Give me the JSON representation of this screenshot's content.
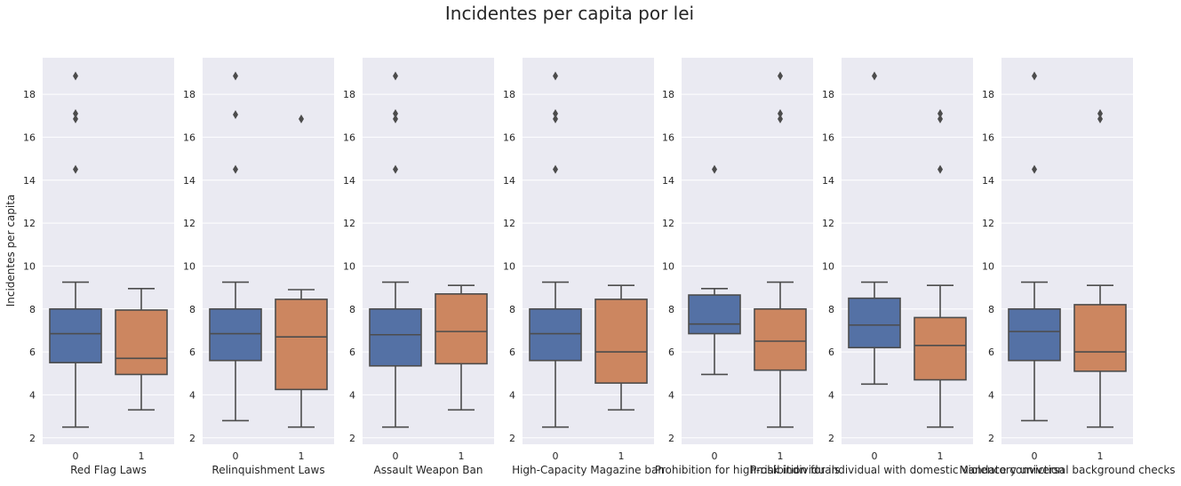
{
  "title": "Incidentes per capita por lei",
  "colors": {
    "category_0": "#5471a5",
    "category_1": "#cc8660",
    "panel_background": "#eaeaf2",
    "grid": "#ffffff",
    "line": "#4c4c4c"
  },
  "chart_data": {
    "type": "box",
    "title": "Incidentes per capita por lei",
    "ylabel": "Incidentes per capita",
    "ylim": [
      1.7,
      19.7
    ],
    "yticks": [
      2,
      4,
      6,
      8,
      10,
      12,
      14,
      16,
      18
    ],
    "categories": [
      "0",
      "1"
    ],
    "grid": true,
    "panels": [
      {
        "xlabel": "Red Flag Laws",
        "boxes": [
          {
            "category": "0",
            "whisker_low": 2.5,
            "q1": 5.5,
            "median": 6.85,
            "q3": 8.0,
            "whisker_high": 9.25,
            "outliers": [
              14.5,
              16.85,
              17.1,
              18.85
            ]
          },
          {
            "category": "1",
            "whisker_low": 3.3,
            "q1": 4.95,
            "median": 5.7,
            "q3": 7.95,
            "whisker_high": 8.95,
            "outliers": []
          }
        ]
      },
      {
        "xlabel": "Relinquishment Laws",
        "boxes": [
          {
            "category": "0",
            "whisker_low": 2.8,
            "q1": 5.6,
            "median": 6.85,
            "q3": 8.0,
            "whisker_high": 9.25,
            "outliers": [
              14.5,
              17.05,
              18.85
            ]
          },
          {
            "category": "1",
            "whisker_low": 2.5,
            "q1": 4.25,
            "median": 6.7,
            "q3": 8.45,
            "whisker_high": 8.9,
            "outliers": [
              16.85
            ]
          }
        ]
      },
      {
        "xlabel": "Assault Weapon Ban",
        "boxes": [
          {
            "category": "0",
            "whisker_low": 2.5,
            "q1": 5.35,
            "median": 6.8,
            "q3": 8.0,
            "whisker_high": 9.25,
            "outliers": [
              14.5,
              16.85,
              17.1,
              18.85
            ]
          },
          {
            "category": "1",
            "whisker_low": 3.3,
            "q1": 5.45,
            "median": 6.95,
            "q3": 8.7,
            "whisker_high": 9.1,
            "outliers": []
          }
        ]
      },
      {
        "xlabel": "High-Capacity Magazine ban",
        "boxes": [
          {
            "category": "0",
            "whisker_low": 2.5,
            "q1": 5.6,
            "median": 6.85,
            "q3": 8.0,
            "whisker_high": 9.25,
            "outliers": [
              14.5,
              16.85,
              17.1,
              18.85
            ]
          },
          {
            "category": "1",
            "whisker_low": 3.3,
            "q1": 4.55,
            "median": 6.0,
            "q3": 8.45,
            "whisker_high": 9.1,
            "outliers": []
          }
        ]
      },
      {
        "xlabel": "Prohibition for high-risk individuals",
        "boxes": [
          {
            "category": "0",
            "whisker_low": 4.95,
            "q1": 6.85,
            "median": 7.3,
            "q3": 8.65,
            "whisker_high": 8.95,
            "outliers": [
              14.5
            ]
          },
          {
            "category": "1",
            "whisker_low": 2.5,
            "q1": 5.15,
            "median": 6.5,
            "q3": 8.0,
            "whisker_high": 9.25,
            "outliers": [
              16.85,
              17.1,
              18.85
            ]
          }
        ]
      },
      {
        "xlabel": "Prohibition for individual with domestic violence conviction",
        "boxes": [
          {
            "category": "0",
            "whisker_low": 4.5,
            "q1": 6.2,
            "median": 7.25,
            "q3": 8.5,
            "whisker_high": 9.25,
            "outliers": [
              18.85
            ]
          },
          {
            "category": "1",
            "whisker_low": 2.5,
            "q1": 4.7,
            "median": 6.3,
            "q3": 7.6,
            "whisker_high": 9.1,
            "outliers": [
              14.5,
              16.85,
              17.1
            ]
          }
        ]
      },
      {
        "xlabel": "Mandatory universal background checks",
        "boxes": [
          {
            "category": "0",
            "whisker_low": 2.8,
            "q1": 5.6,
            "median": 6.95,
            "q3": 8.0,
            "whisker_high": 9.25,
            "outliers": [
              14.5,
              18.85
            ]
          },
          {
            "category": "1",
            "whisker_low": 2.5,
            "q1": 5.1,
            "median": 6.0,
            "q3": 8.2,
            "whisker_high": 9.1,
            "outliers": [
              16.85,
              17.1
            ]
          }
        ]
      }
    ]
  }
}
